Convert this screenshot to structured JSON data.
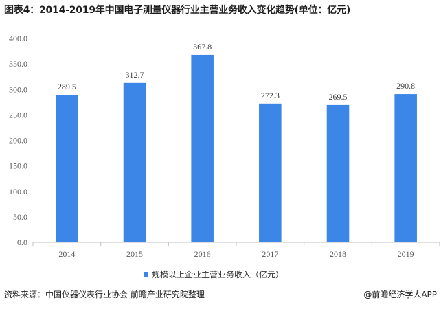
{
  "title": "图表4：2014-2019年中国电子测量仪器行业主营业务收入变化趋势(单位：亿元)",
  "legend": {
    "label": "规模以上企业主营业务收入（亿元）"
  },
  "footer": {
    "source": "资料来源：中国仪器仪表行业协会 前瞻产业研究院整理",
    "credit": "@前瞻经济学人APP"
  },
  "colors": {
    "bar": "#3b86e6",
    "axis": "#bfbfbf"
  },
  "chart_data": {
    "type": "bar",
    "categories": [
      "2014",
      "2015",
      "2016",
      "2017",
      "2018",
      "2019"
    ],
    "series": [
      {
        "name": "规模以上企业主营业务收入（亿元）",
        "values": [
          289.5,
          312.7,
          367.8,
          272.3,
          269.5,
          290.8
        ]
      }
    ],
    "ylim": [
      0,
      400
    ],
    "yticks": [
      "0.0",
      "50.0",
      "100.0",
      "150.0",
      "200.0",
      "250.0",
      "300.0",
      "350.0",
      "400.0"
    ],
    "data_labels": [
      "289.5",
      "312.7",
      "367.8",
      "272.3",
      "269.5",
      "290.8"
    ],
    "grid": false,
    "legend_position": "bottom"
  }
}
